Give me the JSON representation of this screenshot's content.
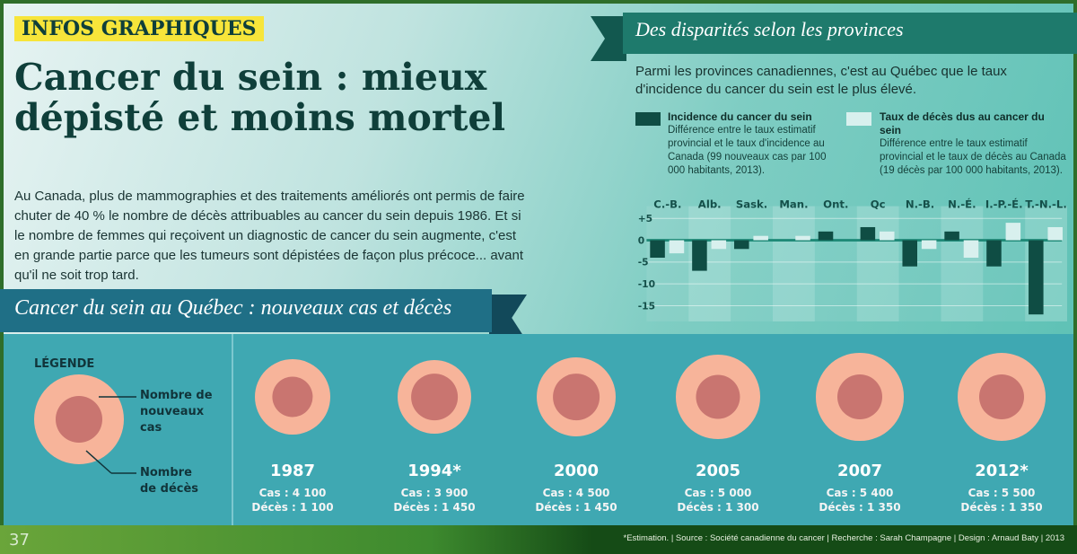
{
  "badge": "INFOS GRAPHIQUES",
  "title": "Cancer du sein : mieux dépisté et moins mortel",
  "intro": "Au Canada, plus de mammographies et des traitements améliorés ont permis de faire chuter de 40 % le nombre de décès attribuables au cancer du sein depuis 1986. Et si le nombre de femmes qui reçoivent un diagnostic de cancer du sein augmente, c'est en grande partie parce que les tumeurs sont dépistées de façon plus précoce... avant qu'il ne soit trop tard.",
  "right": {
    "ribbon": "Des disparités selon les provinces",
    "subtitle": "Parmi les provinces canadiennes, c'est au Québec que le taux d'incidence du cancer du sein est le plus élevé.",
    "legend": [
      {
        "title": "Incidence du cancer du sein",
        "text": "Différence entre le taux estimatif provincial et le taux d'incidence au Canada (99 nouveaux cas par 100 000 habitants, 2013).",
        "color": "#0f4d44"
      },
      {
        "title": "Taux de décès dus au cancer du sein",
        "text": "Différence entre le taux estimatif provincial et le taux de décès au Canada (19 décès par 100 000 habitants, 2013).",
        "color": "#d8f0ee"
      }
    ]
  },
  "chart_data": {
    "type": "bar",
    "categories": [
      "C.-B.",
      "Alb.",
      "Sask.",
      "Man.",
      "Ont.",
      "Qc",
      "N.-B.",
      "N.-É.",
      "I.-P.-É.",
      "T.-N.-L."
    ],
    "series": [
      {
        "name": "Incidence du cancer du sein",
        "values": [
          -4,
          -7,
          -2,
          0,
          2,
          3,
          -6,
          2,
          -6,
          -17
        ]
      },
      {
        "name": "Taux de décès dus au cancer du sein",
        "values": [
          -3,
          -2,
          1,
          1,
          0,
          2,
          -2,
          -4,
          4,
          3
        ]
      }
    ],
    "yticks": [
      "+5",
      "0",
      "-5",
      "-10",
      "-15"
    ],
    "ytick_values": [
      5,
      0,
      -5,
      -10,
      -15
    ],
    "ylim": [
      -18,
      7
    ]
  },
  "quebec": {
    "ribbon": "Cancer du sein au Québec : nouveaux cas et décès",
    "legend_title": "LÉGENDE",
    "legend_outer": "Nombre de nouveaux cas",
    "legend_inner": "Nombre de décès",
    "years": [
      {
        "year": "1987",
        "cases_label": "Cas : 4 100",
        "deaths_label": "Décès : 1 100",
        "cases": 4100,
        "deaths": 1100
      },
      {
        "year": "1994*",
        "cases_label": "Cas : 3 900",
        "deaths_label": "Décès : 1 450",
        "cases": 3900,
        "deaths": 1450
      },
      {
        "year": "2000",
        "cases_label": "Cas : 4 500",
        "deaths_label": "Décès : 1 450",
        "cases": 4500,
        "deaths": 1450
      },
      {
        "year": "2005",
        "cases_label": "Cas : 5 000",
        "deaths_label": "Décès : 1 300",
        "cases": 5000,
        "deaths": 1300
      },
      {
        "year": "2007",
        "cases_label": "Cas : 5 400",
        "deaths_label": "Décès : 1 350",
        "cases": 5400,
        "deaths": 1350
      },
      {
        "year": "2012*",
        "cases_label": "Cas : 5 500",
        "deaths_label": "Décès : 1 350",
        "cases": 5500,
        "deaths": 1350
      }
    ]
  },
  "footer": {
    "page": "37",
    "source": "*Estimation. | Source : Société canadienne du cancer | Recherche : Sarah Champagne | Design : Arnaud Baty | 2013"
  }
}
